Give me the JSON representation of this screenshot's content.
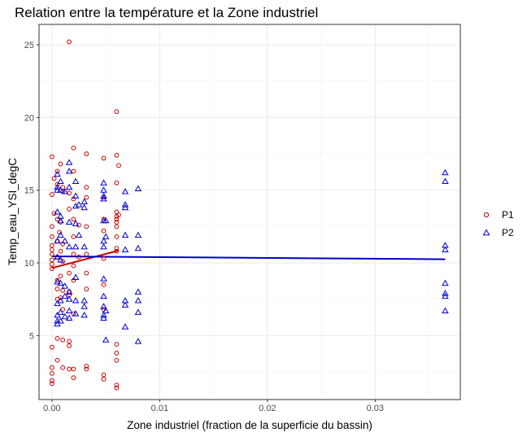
{
  "chart_data": {
    "type": "scatter",
    "title": "Relation entre la température et la Zone industriel",
    "xlabel": "Zone industriel (fraction de la superficie du bassin)",
    "ylabel": "Temp_eau_YSI_degC",
    "xlim": [
      -0.0012,
      0.0379
    ],
    "ylim": [
      0.6,
      26.4
    ],
    "x_ticks": [
      0.0,
      0.01,
      0.02,
      0.03
    ],
    "x_tick_labels": [
      "0.00",
      "0.01",
      "0.02",
      "0.03"
    ],
    "y_ticks": [
      5,
      10,
      15,
      20,
      25
    ],
    "y_tick_labels": [
      "5",
      "10",
      "15",
      "20",
      "25"
    ],
    "grid": true,
    "legend_position": "right",
    "series": [
      {
        "name": "P1",
        "color": "#cc0000",
        "marker": "circle",
        "points": [
          [
            0.0,
            17.3
          ],
          [
            0.0,
            14.7
          ],
          [
            0.0,
            12.5
          ],
          [
            0.0,
            11.8
          ],
          [
            0.0,
            11.2
          ],
          [
            0.0,
            10.9
          ],
          [
            0.0,
            10.6
          ],
          [
            0.0,
            10.2
          ],
          [
            0.0,
            9.9
          ],
          [
            0.0,
            9.6
          ],
          [
            0.0,
            4.2
          ],
          [
            0.0,
            2.8
          ],
          [
            0.0,
            2.4
          ],
          [
            0.0,
            1.9
          ],
          [
            0.0,
            1.7
          ],
          [
            0.0002,
            15.8
          ],
          [
            0.0002,
            13.4
          ],
          [
            0.0005,
            16.3
          ],
          [
            0.0005,
            15.4
          ],
          [
            0.0005,
            13.0
          ],
          [
            0.0005,
            11.5
          ],
          [
            0.0005,
            10.4
          ],
          [
            0.0005,
            8.8
          ],
          [
            0.0005,
            8.2
          ],
          [
            0.0005,
            7.5
          ],
          [
            0.0005,
            4.8
          ],
          [
            0.0005,
            3.3
          ],
          [
            0.0007,
            12.1
          ],
          [
            0.0008,
            16.8
          ],
          [
            0.0008,
            12.8
          ],
          [
            0.0008,
            10.8
          ],
          [
            0.0008,
            9.1
          ],
          [
            0.0008,
            7.6
          ],
          [
            0.001,
            15.2
          ],
          [
            0.001,
            14.9
          ],
          [
            0.001,
            11.3
          ],
          [
            0.001,
            10.1
          ],
          [
            0.001,
            8.1
          ],
          [
            0.001,
            6.8
          ],
          [
            0.001,
            4.7
          ],
          [
            0.001,
            2.8
          ],
          [
            0.0016,
            25.2
          ],
          [
            0.0016,
            14.8
          ],
          [
            0.0016,
            13.7
          ],
          [
            0.0016,
            9.3
          ],
          [
            0.0016,
            8.0
          ],
          [
            0.0016,
            7.8
          ],
          [
            0.0016,
            4.6
          ],
          [
            0.0016,
            4.3
          ],
          [
            0.0016,
            2.7
          ],
          [
            0.002,
            17.9
          ],
          [
            0.002,
            16.3
          ],
          [
            0.002,
            14.4
          ],
          [
            0.002,
            13.0
          ],
          [
            0.002,
            11.8
          ],
          [
            0.002,
            10.6
          ],
          [
            0.002,
            9.8
          ],
          [
            0.002,
            8.8
          ],
          [
            0.002,
            6.5
          ],
          [
            0.002,
            2.7
          ],
          [
            0.002,
            2.1
          ],
          [
            0.0025,
            12.6
          ],
          [
            0.0025,
            10.4
          ],
          [
            0.0032,
            17.5
          ],
          [
            0.0032,
            15.2
          ],
          [
            0.0032,
            14.5
          ],
          [
            0.0032,
            12.5
          ],
          [
            0.0032,
            10.6
          ],
          [
            0.0032,
            9.3
          ],
          [
            0.0032,
            8.2
          ],
          [
            0.0032,
            2.9
          ],
          [
            0.0032,
            2.7
          ],
          [
            0.0048,
            17.2
          ],
          [
            0.0048,
            14.5
          ],
          [
            0.0048,
            13.0
          ],
          [
            0.0048,
            12.2
          ],
          [
            0.0048,
            10.3
          ],
          [
            0.0048,
            8.5
          ],
          [
            0.0048,
            6.8
          ],
          [
            0.0048,
            2.3
          ],
          [
            0.0048,
            2.0
          ],
          [
            0.006,
            20.4
          ],
          [
            0.006,
            17.4
          ],
          [
            0.006,
            15.5
          ],
          [
            0.006,
            13.5
          ],
          [
            0.006,
            13.2
          ],
          [
            0.006,
            13.0
          ],
          [
            0.006,
            12.8
          ],
          [
            0.006,
            12.5
          ],
          [
            0.006,
            11.8
          ],
          [
            0.006,
            11.0
          ],
          [
            0.006,
            10.8
          ],
          [
            0.006,
            4.4
          ],
          [
            0.006,
            3.8
          ],
          [
            0.006,
            3.3
          ],
          [
            0.006,
            1.6
          ],
          [
            0.006,
            1.4
          ],
          [
            0.0062,
            16.7
          ],
          [
            0.0062,
            13.3
          ]
        ],
        "trend": [
          [
            0.0,
            9.65
          ],
          [
            0.0062,
            10.85
          ]
        ]
      },
      {
        "name": "P2",
        "color": "#0000cc",
        "marker": "triangle",
        "points": [
          [
            0.0005,
            16.1
          ],
          [
            0.0005,
            15.2
          ],
          [
            0.0005,
            15.0
          ],
          [
            0.0005,
            13.5
          ],
          [
            0.0005,
            11.5
          ],
          [
            0.0005,
            10.4
          ],
          [
            0.0005,
            8.7
          ],
          [
            0.0005,
            7.2
          ],
          [
            0.0005,
            6.4
          ],
          [
            0.0005,
            6.0
          ],
          [
            0.0005,
            5.8
          ],
          [
            0.0008,
            15.6
          ],
          [
            0.0008,
            15.0
          ],
          [
            0.0008,
            13.2
          ],
          [
            0.0008,
            12.9
          ],
          [
            0.0008,
            11.9
          ],
          [
            0.0008,
            10.2
          ],
          [
            0.0008,
            8.6
          ],
          [
            0.0008,
            7.4
          ],
          [
            0.0008,
            6.6
          ],
          [
            0.0008,
            6.0
          ],
          [
            0.0012,
            14.9
          ],
          [
            0.0012,
            11.5
          ],
          [
            0.0012,
            8.4
          ],
          [
            0.0012,
            7.7
          ],
          [
            0.0012,
            6.3
          ],
          [
            0.0016,
            16.9
          ],
          [
            0.0016,
            16.3
          ],
          [
            0.0016,
            15.2
          ],
          [
            0.0016,
            12.8
          ],
          [
            0.0016,
            11.1
          ],
          [
            0.0016,
            8.0
          ],
          [
            0.0016,
            7.5
          ],
          [
            0.0016,
            6.7
          ],
          [
            0.0016,
            6.2
          ],
          [
            0.0022,
            15.6
          ],
          [
            0.0022,
            14.6
          ],
          [
            0.0022,
            13.9
          ],
          [
            0.0022,
            12.7
          ],
          [
            0.0022,
            11.1
          ],
          [
            0.0022,
            9.0
          ],
          [
            0.0022,
            7.4
          ],
          [
            0.0022,
            6.5
          ],
          [
            0.0025,
            14.0
          ],
          [
            0.0025,
            11.9
          ],
          [
            0.003,
            14.2
          ],
          [
            0.003,
            13.8
          ],
          [
            0.003,
            11.1
          ],
          [
            0.003,
            7.4
          ],
          [
            0.003,
            7.0
          ],
          [
            0.003,
            6.4
          ],
          [
            0.0048,
            15.5
          ],
          [
            0.0048,
            15.0
          ],
          [
            0.0048,
            14.6
          ],
          [
            0.0048,
            14.4
          ],
          [
            0.0048,
            12.9
          ],
          [
            0.0048,
            11.5
          ],
          [
            0.0048,
            11.1
          ],
          [
            0.0048,
            8.9
          ],
          [
            0.0048,
            7.7
          ],
          [
            0.0048,
            7.0
          ],
          [
            0.0048,
            6.4
          ],
          [
            0.0048,
            6.2
          ],
          [
            0.005,
            12.9
          ],
          [
            0.005,
            11.8
          ],
          [
            0.005,
            6.7
          ],
          [
            0.005,
            4.7
          ],
          [
            0.0068,
            14.9
          ],
          [
            0.0068,
            14.0
          ],
          [
            0.0068,
            13.8
          ],
          [
            0.0068,
            11.9
          ],
          [
            0.0068,
            10.9
          ],
          [
            0.0068,
            7.4
          ],
          [
            0.0068,
            7.1
          ],
          [
            0.0068,
            5.6
          ],
          [
            0.008,
            15.1
          ],
          [
            0.008,
            11.9
          ],
          [
            0.008,
            11.0
          ],
          [
            0.008,
            8.0
          ],
          [
            0.008,
            7.4
          ],
          [
            0.008,
            6.6
          ],
          [
            0.008,
            4.6
          ],
          [
            0.0365,
            16.2
          ],
          [
            0.0365,
            15.6
          ],
          [
            0.0365,
            11.2
          ],
          [
            0.0365,
            10.9
          ],
          [
            0.0365,
            8.6
          ],
          [
            0.0365,
            7.9
          ],
          [
            0.0365,
            7.7
          ],
          [
            0.0365,
            6.7
          ]
        ],
        "trend": [
          [
            0.0,
            10.45
          ],
          [
            0.0365,
            10.25
          ]
        ]
      }
    ]
  }
}
